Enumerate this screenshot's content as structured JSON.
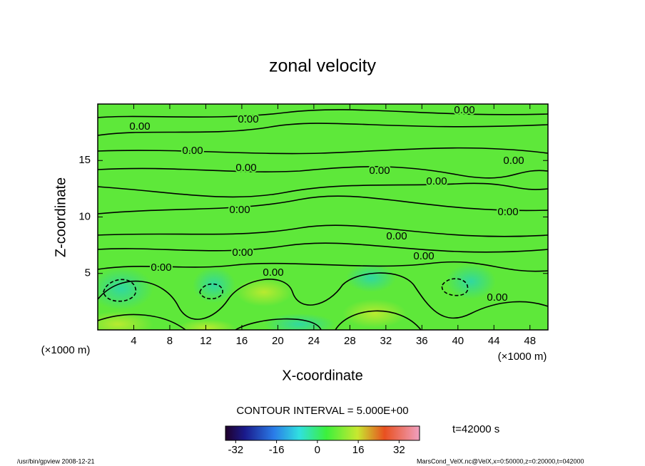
{
  "chart_data": {
    "type": "contour",
    "title": "zonal velocity",
    "x_label": "X-coordinate",
    "y_label": "Z-coordinate",
    "x_unit": "(×1000 m)",
    "y_unit": "(×1000 m)",
    "xlim": [
      0,
      50
    ],
    "xticks": [
      4,
      8,
      12,
      16,
      20,
      24,
      28,
      32,
      36,
      40,
      44,
      48
    ],
    "ylim": [
      0,
      20
    ],
    "yticks": [
      5,
      10,
      15
    ],
    "contour_interval": "CONTOUR INTERVAL = 5.000E+00",
    "contour_labels": [
      "0.00",
      "0.00",
      "0.00",
      "0.00",
      "0.00",
      "0.00",
      "0.00",
      "0.00",
      "0.00",
      "0.00",
      "0.00",
      "0.00",
      "0.00",
      "0.00",
      "0.00",
      "0.00"
    ],
    "colorbar": {
      "lim": [
        -36,
        40
      ],
      "ticks": [
        -32,
        -16,
        0,
        16,
        32
      ]
    },
    "time": "t=42000 s"
  },
  "footer": {
    "left": "/usr/bin/gpview  2008-12-21",
    "right": "MarsCond_VelX.nc@VelX,x=0:50000,z=0:20000,t=042000"
  }
}
